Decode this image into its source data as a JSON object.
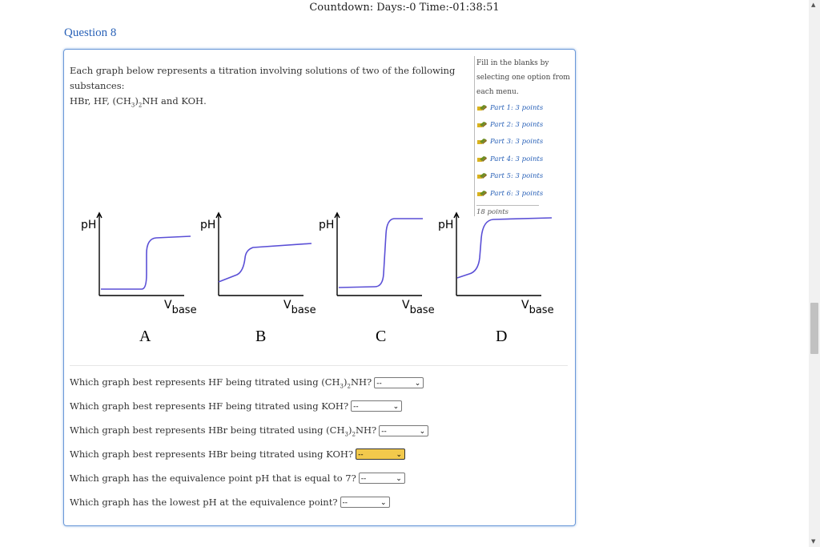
{
  "header": {
    "countdown": "Countdown: Days:-0 Time:-01:38:51"
  },
  "question": {
    "title": "Question 8",
    "intro_line1": "Each graph below represents a titration involving solutions of two of the following substances:",
    "intro_line2_a": "HBr, HF, (CH",
    "intro_line2_sub1": "3",
    "intro_line2_b": ")",
    "intro_line2_sub2": "2",
    "intro_line2_c": "NH and KOH."
  },
  "sidepanel": {
    "instructions": "Fill in the blanks by selecting one option from each menu.",
    "parts": [
      {
        "label": "Part 1: 3 points"
      },
      {
        "label": "Part 2: 3 points"
      },
      {
        "label": "Part 3: 3 points"
      },
      {
        "label": "Part 4: 3 points"
      },
      {
        "label": "Part 5: 3 points"
      },
      {
        "label": "Part 6: 3 points"
      }
    ],
    "total": "18 points"
  },
  "graphs": {
    "ylabel": "pH",
    "xlabel_main": "V",
    "xlabel_sub": "base",
    "curve_color": "#5a4fd6",
    "letters": [
      "A",
      "B",
      "C",
      "D"
    ]
  },
  "questions": [
    {
      "pre": "Which graph best represents HF being titrated using (CH",
      "sub1": "3",
      "mid": ")",
      "sub2": "2",
      "post": "NH?",
      "value": "--",
      "highlight": false
    },
    {
      "pre": "Which graph best represents HF being titrated using KOH?",
      "value": "--",
      "highlight": false
    },
    {
      "pre": "Which graph best represents HBr being titrated using (CH",
      "sub1": "3",
      "mid": ")",
      "sub2": "2",
      "post": "NH?",
      "value": "--",
      "highlight": false
    },
    {
      "pre": "Which graph best represents HBr being titrated using KOH?",
      "value": "--",
      "highlight": true
    },
    {
      "pre": "Which graph has the equivalence point pH that is equal to 7?",
      "value": "--",
      "highlight": false
    },
    {
      "pre": "Which graph has the lowest pH at the equivalence point?",
      "value": "--",
      "highlight": false
    }
  ],
  "colors": {
    "accent": "#2a62b8",
    "highlight": "#f2c94c",
    "box_border": "#6a98d8"
  }
}
